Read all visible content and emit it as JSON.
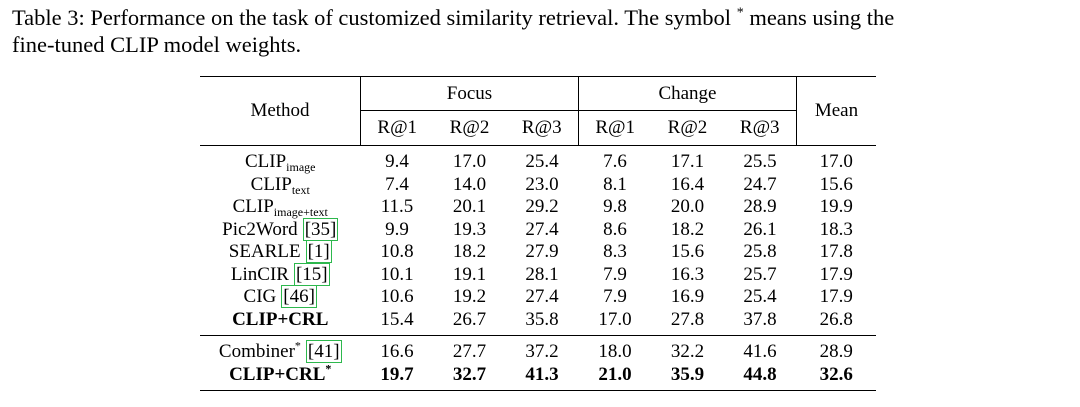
{
  "caption": {
    "line1": "Table 3: Performance on the task of customized similarity retrieval. The symbol",
    "symbol": "*",
    "line1_end": "means using the",
    "line2": "fine-tuned CLIP model weights."
  },
  "table": {
    "header": {
      "method": "Method",
      "focus": "Focus",
      "change": "Change",
      "mean": "Mean",
      "focus_metrics": [
        "R@1",
        "R@2",
        "R@3"
      ],
      "change_metrics": [
        "R@1",
        "R@2",
        "R@3"
      ]
    },
    "rows": [
      {
        "method": {
          "name": "CLIP",
          "sub": "image"
        },
        "values": [
          "9.4",
          "17.0",
          "25.4",
          "7.6",
          "17.1",
          "25.5",
          "17.0"
        ]
      },
      {
        "method": {
          "name": "CLIP",
          "sub": "text"
        },
        "values": [
          "7.4",
          "14.0",
          "23.0",
          "8.1",
          "16.4",
          "24.7",
          "15.6"
        ]
      },
      {
        "method": {
          "name": "CLIP",
          "sub": "image+text"
        },
        "values": [
          "11.5",
          "20.1",
          "29.2",
          "9.8",
          "20.0",
          "28.9",
          "19.9"
        ]
      },
      {
        "method": {
          "name": "Pic2Word",
          "cite": "[35]"
        },
        "values": [
          "9.9",
          "19.3",
          "27.4",
          "8.6",
          "18.2",
          "26.1",
          "18.3"
        ]
      },
      {
        "method": {
          "name": "SEARLE",
          "cite": "[1]"
        },
        "values": [
          "10.8",
          "18.2",
          "27.9",
          "8.3",
          "15.6",
          "25.8",
          "17.8"
        ]
      },
      {
        "method": {
          "name": "LinCIR",
          "cite": "[15]"
        },
        "values": [
          "10.1",
          "19.1",
          "28.1",
          "7.9",
          "16.3",
          "25.7",
          "17.9"
        ]
      },
      {
        "method": {
          "name": "CIG",
          "cite": "[46]"
        },
        "values": [
          "10.6",
          "19.2",
          "27.4",
          "7.9",
          "16.9",
          "25.4",
          "17.9"
        ]
      },
      {
        "method": {
          "name": "CLIP+CRL"
        },
        "values": [
          "15.4",
          "26.7",
          "35.8",
          "17.0",
          "27.8",
          "37.8",
          "26.8"
        ]
      }
    ],
    "finetuned_rows": [
      {
        "method": {
          "name": "Combiner",
          "sup": "*",
          "cite": "[41]"
        },
        "values": [
          "16.6",
          "27.7",
          "37.2",
          "18.0",
          "32.2",
          "41.6",
          "28.9"
        ]
      },
      {
        "method": {
          "name": "CLIP+CRL",
          "sup": "*"
        },
        "values": [
          "19.7",
          "32.7",
          "41.3",
          "21.0",
          "35.9",
          "44.8",
          "32.6"
        ]
      }
    ]
  }
}
